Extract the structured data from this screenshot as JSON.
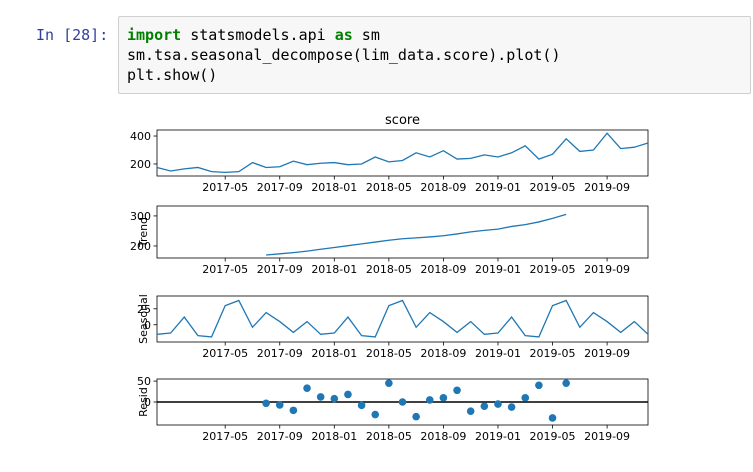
{
  "cell": {
    "prompt": "In [28]:",
    "code": [
      [
        {
          "text": "import",
          "kw": true
        },
        {
          "text": " statsmodels.api "
        },
        {
          "text": "as",
          "kw": true
        },
        {
          "text": " sm"
        }
      ],
      [
        {
          "text": "sm.tsa.seasonal_decompose(lim_data.score).plot()"
        }
      ],
      [
        {
          "text": "plt.show()"
        }
      ]
    ]
  },
  "chart_data": [
    {
      "type": "line",
      "title": "score",
      "color": "#1f77b4",
      "x": [
        "2016-12",
        "2017-01",
        "2017-02",
        "2017-03",
        "2017-04",
        "2017-05",
        "2017-06",
        "2017-07",
        "2017-08",
        "2017-09",
        "2017-10",
        "2017-11",
        "2017-12",
        "2018-01",
        "2018-02",
        "2018-03",
        "2018-04",
        "2018-05",
        "2018-06",
        "2018-07",
        "2018-08",
        "2018-09",
        "2018-10",
        "2018-11",
        "2018-12",
        "2019-01",
        "2019-02",
        "2019-03",
        "2019-04",
        "2019-05",
        "2019-06",
        "2019-07",
        "2019-08",
        "2019-09",
        "2019-10",
        "2019-11",
        "2019-12"
      ],
      "values": [
        175,
        150,
        165,
        175,
        145,
        140,
        145,
        210,
        175,
        180,
        220,
        195,
        205,
        210,
        195,
        200,
        250,
        215,
        225,
        280,
        250,
        295,
        235,
        240,
        265,
        250,
        280,
        330,
        235,
        270,
        380,
        290,
        300,
        420,
        310,
        320,
        350
      ],
      "xlim": [
        "2016-12",
        "2019-12"
      ],
      "xticks": [
        "2017-05",
        "2017-09",
        "2018-01",
        "2018-05",
        "2018-09",
        "2019-01",
        "2019-05",
        "2019-09"
      ],
      "ylim": [
        114,
        443
      ],
      "yticks": [
        200,
        400
      ]
    },
    {
      "type": "line",
      "ylabel": "Trend",
      "color": "#1f77b4",
      "x": [
        "2016-12",
        "2017-01",
        "2017-02",
        "2017-03",
        "2017-04",
        "2017-05",
        "2017-06",
        "2017-07",
        "2017-08",
        "2017-09",
        "2017-10",
        "2017-11",
        "2017-12",
        "2018-01",
        "2018-02",
        "2018-03",
        "2018-04",
        "2018-05",
        "2018-06",
        "2018-07",
        "2018-08",
        "2018-09",
        "2018-10",
        "2018-11",
        "2018-12",
        "2019-01",
        "2019-02",
        "2019-03",
        "2019-04",
        "2019-05",
        "2019-06",
        "2019-07",
        "2019-08",
        "2019-09",
        "2019-10",
        "2019-11",
        "2019-12"
      ],
      "values": [
        null,
        null,
        null,
        null,
        null,
        null,
        null,
        null,
        170,
        174,
        178,
        183,
        189,
        195,
        201,
        207,
        213,
        219,
        224,
        227,
        230,
        234,
        240,
        247,
        252,
        256,
        265,
        271,
        280,
        292,
        305,
        null,
        null,
        null,
        null,
        null,
        null
      ],
      "xlim": [
        "2016-12",
        "2019-12"
      ],
      "xticks": [
        "2017-05",
        "2017-09",
        "2018-01",
        "2018-05",
        "2018-09",
        "2019-01",
        "2019-05",
        "2019-09"
      ],
      "ylim": [
        160,
        333
      ],
      "yticks": [
        200,
        300
      ]
    },
    {
      "type": "line",
      "ylabel": "Seasonal",
      "color": "#1f77b4",
      "x": [
        "2016-12",
        "2017-01",
        "2017-02",
        "2017-03",
        "2017-04",
        "2017-05",
        "2017-06",
        "2017-07",
        "2017-08",
        "2017-09",
        "2017-10",
        "2017-11",
        "2017-12",
        "2018-01",
        "2018-02",
        "2018-03",
        "2018-04",
        "2018-05",
        "2018-06",
        "2018-07",
        "2018-08",
        "2018-09",
        "2018-10",
        "2018-11",
        "2018-12",
        "2019-01",
        "2019-02",
        "2019-03",
        "2019-04",
        "2019-05",
        "2019-06",
        "2019-07",
        "2019-08",
        "2019-09",
        "2019-10",
        "2019-11",
        "2019-12"
      ],
      "values": [
        -15,
        -13,
        12,
        -17,
        -19,
        30,
        38,
        -4,
        19,
        5,
        -12,
        5,
        -15,
        -13,
        12,
        -17,
        -19,
        30,
        38,
        -4,
        19,
        5,
        -12,
        5,
        -15,
        -13,
        12,
        -17,
        -19,
        30,
        38,
        -4,
        19,
        5,
        -12,
        5,
        -15
      ],
      "xlim": [
        "2016-12",
        "2019-12"
      ],
      "xticks": [
        "2017-05",
        "2017-09",
        "2018-01",
        "2018-05",
        "2018-09",
        "2019-01",
        "2019-05",
        "2019-09"
      ],
      "ylim": [
        -27,
        45
      ],
      "yticks": [
        0,
        25
      ]
    },
    {
      "type": "scatter",
      "ylabel": "Resid",
      "color": "#1f77b4",
      "zero_line": true,
      "x": [
        "2016-12",
        "2017-01",
        "2017-02",
        "2017-03",
        "2017-04",
        "2017-05",
        "2017-06",
        "2017-07",
        "2017-08",
        "2017-09",
        "2017-10",
        "2017-11",
        "2017-12",
        "2018-01",
        "2018-02",
        "2018-03",
        "2018-04",
        "2018-05",
        "2018-06",
        "2018-07",
        "2018-08",
        "2018-09",
        "2018-10",
        "2018-11",
        "2018-12",
        "2019-01",
        "2019-02",
        "2019-03",
        "2019-04",
        "2019-05",
        "2019-06",
        "2019-07",
        "2019-08",
        "2019-09",
        "2019-10",
        "2019-11",
        "2019-12"
      ],
      "values": [
        null,
        null,
        null,
        null,
        null,
        null,
        null,
        null,
        -3,
        -7,
        -20,
        33,
        12,
        8,
        18,
        -8,
        -30,
        45,
        0,
        -35,
        5,
        10,
        28,
        -22,
        -10,
        -5,
        -12,
        10,
        40,
        -38,
        45,
        null,
        null,
        null,
        null,
        null,
        null
      ],
      "xlim": [
        "2016-12",
        "2019-12"
      ],
      "xticks": [
        "2017-05",
        "2017-09",
        "2018-01",
        "2018-05",
        "2018-09",
        "2019-01",
        "2019-05",
        "2019-09"
      ],
      "ylim": [
        -55,
        55
      ],
      "yticks": [
        0,
        50
      ]
    }
  ]
}
